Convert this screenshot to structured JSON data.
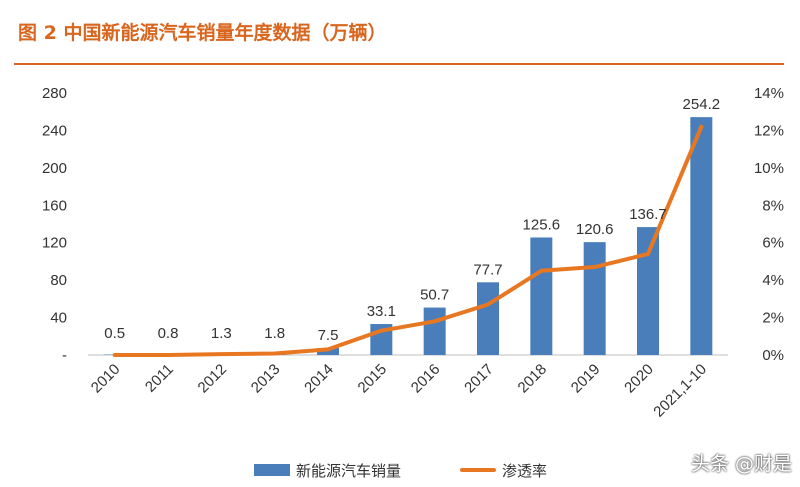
{
  "figure_title": "图 2  中国新能源汽车销量年度数据（万辆）",
  "accent_color": "#D9661F",
  "watermark": "头条 @财是",
  "chart_data": {
    "type": "bar",
    "categories": [
      "2010",
      "2011",
      "2012",
      "2013",
      "2014",
      "2015",
      "2016",
      "2017",
      "2018",
      "2019",
      "2020",
      "2021,1-10"
    ],
    "series": [
      {
        "name": "新能源汽车销量",
        "type": "bar",
        "axis": "left",
        "color": "#4A7EBB",
        "values": [
          0.5,
          0.8,
          1.3,
          1.8,
          7.5,
          33.1,
          50.7,
          77.7,
          125.6,
          120.6,
          136.7,
          254.2
        ],
        "labels": [
          "0.5",
          "0.8",
          "1.3",
          "1.8",
          "7.5",
          "33.1",
          "50.7",
          "77.7",
          "125.6",
          "120.6",
          "136.7",
          "254.2"
        ]
      },
      {
        "name": "渗透率",
        "type": "line",
        "axis": "right",
        "color": "#E87722",
        "values": [
          0.0,
          0.0,
          0.05,
          0.08,
          0.3,
          1.3,
          1.8,
          2.7,
          4.5,
          4.7,
          5.4,
          12.2
        ]
      }
    ],
    "y_left": {
      "min": 0,
      "max": 280,
      "ticks": [
        0,
        40,
        80,
        120,
        160,
        200,
        240,
        280
      ],
      "tick_labels": [
        "-",
        "40",
        "80",
        "120",
        "160",
        "200",
        "240",
        "280"
      ]
    },
    "y_right": {
      "min": 0,
      "max": 14,
      "ticks": [
        0,
        2,
        4,
        6,
        8,
        10,
        12,
        14
      ],
      "tick_labels": [
        "0%",
        "2%",
        "4%",
        "6%",
        "8%",
        "10%",
        "12%",
        "14%"
      ]
    },
    "grid": false,
    "legend_position": "bottom"
  }
}
